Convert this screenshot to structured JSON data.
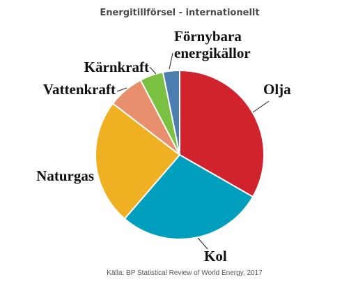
{
  "chart_data": {
    "type": "pie",
    "title": "Energitillförsel - internationellt",
    "source": "Källa: BP Statistical Review of World Energy, 2017",
    "categories": [
      "Olja",
      "Kol",
      "Naturgas",
      "Vattenkraft",
      "Kärnkraft",
      "Förnybara energikällor"
    ],
    "values": [
      33.3,
      28.1,
      24.1,
      6.9,
      4.5,
      3.2
    ],
    "colors": [
      "#d0232e",
      "#009fbe",
      "#efb021",
      "#e8906e",
      "#7ac142",
      "#4a7fb0"
    ]
  }
}
